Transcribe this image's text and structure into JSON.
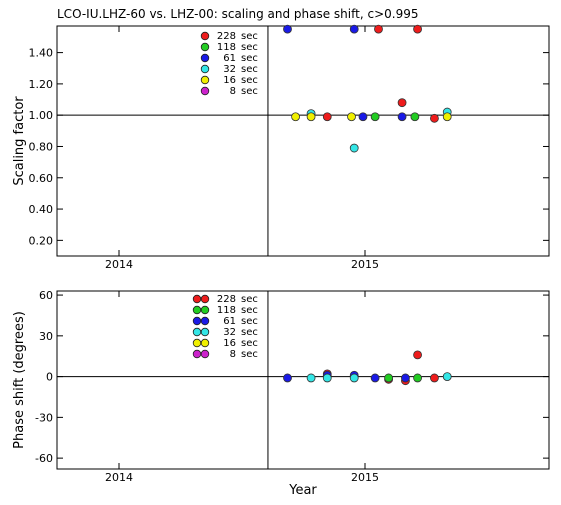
{
  "title": "LCO-IU.LHZ-60 vs. LHZ-00: scaling and phase shift, c>0.995",
  "x_axis_label": "Year",
  "period_colors": {
    "228 sec": "#ee1c1c",
    "118 sec": "#22cc22",
    "61 sec": "#1a1ae6",
    "32 sec": "#33e6e6",
    "16 sec": "#f0f000",
    "8 sec": "#cc22cc"
  },
  "chart_data": [
    {
      "type": "scatter",
      "name": "scaling",
      "ylabel": "Scaling factor",
      "xlim": [
        "2013-10-01",
        "2015-10-01"
      ],
      "ylim": [
        0.1,
        1.57
      ],
      "x_ticks": [
        {
          "date": "2014-01-01",
          "label": "2014"
        },
        {
          "date": "2015-01-01",
          "label": "2015"
        }
      ],
      "y_ticks": [
        {
          "value": 0.2,
          "label": "0.20"
        },
        {
          "value": 0.4,
          "label": "0.40"
        },
        {
          "value": 0.6,
          "label": "0.60"
        },
        {
          "value": 0.8,
          "label": "0.80"
        },
        {
          "value": 1.0,
          "label": "1.00"
        },
        {
          "value": 1.2,
          "label": "1.20"
        },
        {
          "value": 1.4,
          "label": "1.40"
        }
      ],
      "reference_line_y": 1.0,
      "vertical_line_x": "2014-08-10",
      "legend_position": "top-left",
      "series": [
        {
          "name": "228 sec",
          "color": "#ee1c1c",
          "points": [
            {
              "x": "2015-01-21",
              "y": 1.55
            },
            {
              "x": "2015-03-20",
              "y": 1.55
            },
            {
              "x": "2014-11-06",
              "y": 0.99
            },
            {
              "x": "2015-02-25",
              "y": 1.08
            },
            {
              "x": "2015-04-14",
              "y": 0.98
            }
          ]
        },
        {
          "name": "118 sec",
          "color": "#22cc22",
          "points": [
            {
              "x": "2015-01-16",
              "y": 0.99
            },
            {
              "x": "2015-03-16",
              "y": 0.99
            }
          ]
        },
        {
          "name": "61 sec",
          "color": "#1a1ae6",
          "points": [
            {
              "x": "2014-09-08",
              "y": 1.55
            },
            {
              "x": "2014-12-16",
              "y": 1.55
            },
            {
              "x": "2014-12-29",
              "y": 0.99
            },
            {
              "x": "2015-02-25",
              "y": 0.99
            }
          ]
        },
        {
          "name": "32 sec",
          "color": "#33e6e6",
          "points": [
            {
              "x": "2014-10-13",
              "y": 1.01
            },
            {
              "x": "2014-12-16",
              "y": 0.79
            },
            {
              "x": "2015-05-03",
              "y": 1.02
            }
          ]
        },
        {
          "name": "16 sec",
          "color": "#f0f000",
          "points": [
            {
              "x": "2014-09-20",
              "y": 0.99
            },
            {
              "x": "2014-10-13",
              "y": 0.99
            },
            {
              "x": "2014-12-12",
              "y": 0.99
            },
            {
              "x": "2015-05-03",
              "y": 0.99
            }
          ]
        },
        {
          "name": "8 sec",
          "color": "#cc22cc",
          "points": []
        }
      ]
    },
    {
      "type": "scatter",
      "name": "phase",
      "ylabel": "Phase shift (degrees)",
      "xlabel": "Year",
      "xlim": [
        "2013-10-01",
        "2015-10-01"
      ],
      "ylim": [
        -68,
        63
      ],
      "x_ticks": [
        {
          "date": "2014-01-01",
          "label": "2014"
        },
        {
          "date": "2015-01-01",
          "label": "2015"
        }
      ],
      "y_ticks": [
        {
          "value": -60,
          "label": "-60"
        },
        {
          "value": -30,
          "label": "-30"
        },
        {
          "value": 0,
          "label": "0"
        },
        {
          "value": 30,
          "label": "30"
        },
        {
          "value": 60,
          "label": "60"
        }
      ],
      "reference_line_y": 0,
      "vertical_line_x": "2014-08-10",
      "legend_position": "top-left",
      "series": [
        {
          "name": "228 sec",
          "color": "#ee1c1c",
          "points": [
            {
              "x": "2014-11-06",
              "y": 2
            },
            {
              "x": "2015-02-05",
              "y": -2
            },
            {
              "x": "2015-03-02",
              "y": -3
            },
            {
              "x": "2015-03-20",
              "y": 16
            },
            {
              "x": "2015-04-14",
              "y": -1
            }
          ]
        },
        {
          "name": "118 sec",
          "color": "#22cc22",
          "points": [
            {
              "x": "2015-02-05",
              "y": -1
            },
            {
              "x": "2015-03-20",
              "y": -1
            }
          ]
        },
        {
          "name": "61 sec",
          "color": "#1a1ae6",
          "points": [
            {
              "x": "2014-09-08",
              "y": -1
            },
            {
              "x": "2014-11-06",
              "y": 1
            },
            {
              "x": "2014-12-16",
              "y": 1
            },
            {
              "x": "2015-01-16",
              "y": -1
            },
            {
              "x": "2015-03-02",
              "y": -1
            }
          ]
        },
        {
          "name": "32 sec",
          "color": "#33e6e6",
          "points": [
            {
              "x": "2014-10-13",
              "y": -1
            },
            {
              "x": "2014-11-06",
              "y": -1
            },
            {
              "x": "2014-12-16",
              "y": -1
            },
            {
              "x": "2015-05-03",
              "y": 0
            }
          ]
        },
        {
          "name": "16 sec",
          "color": "#f0f000",
          "points": []
        },
        {
          "name": "8 sec",
          "color": "#cc22cc",
          "points": []
        }
      ]
    }
  ]
}
